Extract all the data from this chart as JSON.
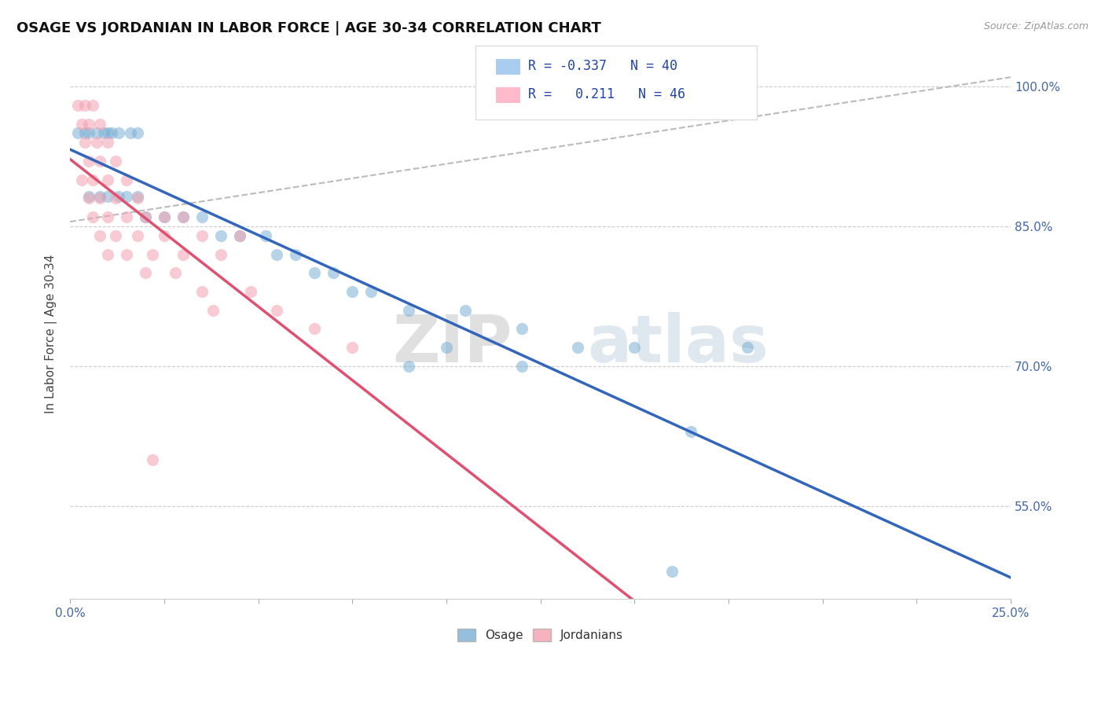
{
  "title": "OSAGE VS JORDANIAN IN LABOR FORCE | AGE 30-34 CORRELATION CHART",
  "source_text": "Source: ZipAtlas.com",
  "ylabel": "In Labor Force | Age 30-34",
  "xlim": [
    0.0,
    0.25
  ],
  "ylim": [
    0.45,
    1.02
  ],
  "xtick_vals": [
    0.0,
    0.025,
    0.05,
    0.075,
    0.1,
    0.125,
    0.15,
    0.175,
    0.2,
    0.225,
    0.25
  ],
  "ytick_vals": [
    0.55,
    0.7,
    0.85,
    1.0
  ],
  "ytick_labels": [
    "55.0%",
    "70.0%",
    "85.0%",
    "100.0%"
  ],
  "blue_r": "-0.337",
  "blue_n": "40",
  "pink_r": "0.211",
  "pink_n": "46",
  "blue_color": "#7BAFD4",
  "pink_color": "#F4A0B0",
  "blue_line_color": "#3366BB",
  "pink_line_color": "#E05070",
  "dash_color": "#BBBBBB",
  "blue_scatter": [
    [
      0.002,
      0.95
    ],
    [
      0.004,
      0.95
    ],
    [
      0.005,
      0.95
    ],
    [
      0.007,
      0.95
    ],
    [
      0.009,
      0.95
    ],
    [
      0.01,
      0.95
    ],
    [
      0.011,
      0.95
    ],
    [
      0.013,
      0.95
    ],
    [
      0.016,
      0.95
    ],
    [
      0.018,
      0.95
    ],
    [
      0.005,
      0.882
    ],
    [
      0.008,
      0.882
    ],
    [
      0.01,
      0.882
    ],
    [
      0.013,
      0.882
    ],
    [
      0.015,
      0.882
    ],
    [
      0.018,
      0.882
    ],
    [
      0.02,
      0.86
    ],
    [
      0.025,
      0.86
    ],
    [
      0.03,
      0.86
    ],
    [
      0.035,
      0.86
    ],
    [
      0.04,
      0.84
    ],
    [
      0.045,
      0.84
    ],
    [
      0.052,
      0.84
    ],
    [
      0.055,
      0.82
    ],
    [
      0.06,
      0.82
    ],
    [
      0.065,
      0.8
    ],
    [
      0.07,
      0.8
    ],
    [
      0.075,
      0.78
    ],
    [
      0.08,
      0.78
    ],
    [
      0.09,
      0.76
    ],
    [
      0.105,
      0.76
    ],
    [
      0.12,
      0.74
    ],
    [
      0.1,
      0.72
    ],
    [
      0.135,
      0.72
    ],
    [
      0.15,
      0.72
    ],
    [
      0.18,
      0.72
    ],
    [
      0.09,
      0.7
    ],
    [
      0.12,
      0.7
    ],
    [
      0.165,
      0.63
    ],
    [
      0.16,
      0.48
    ]
  ],
  "pink_scatter": [
    [
      0.002,
      0.98
    ],
    [
      0.004,
      0.98
    ],
    [
      0.006,
      0.98
    ],
    [
      0.003,
      0.96
    ],
    [
      0.005,
      0.96
    ],
    [
      0.008,
      0.96
    ],
    [
      0.004,
      0.94
    ],
    [
      0.007,
      0.94
    ],
    [
      0.01,
      0.94
    ],
    [
      0.005,
      0.92
    ],
    [
      0.008,
      0.92
    ],
    [
      0.012,
      0.92
    ],
    [
      0.003,
      0.9
    ],
    [
      0.006,
      0.9
    ],
    [
      0.01,
      0.9
    ],
    [
      0.015,
      0.9
    ],
    [
      0.005,
      0.88
    ],
    [
      0.008,
      0.88
    ],
    [
      0.012,
      0.88
    ],
    [
      0.018,
      0.88
    ],
    [
      0.006,
      0.86
    ],
    [
      0.01,
      0.86
    ],
    [
      0.015,
      0.86
    ],
    [
      0.02,
      0.86
    ],
    [
      0.025,
      0.86
    ],
    [
      0.03,
      0.86
    ],
    [
      0.008,
      0.84
    ],
    [
      0.012,
      0.84
    ],
    [
      0.018,
      0.84
    ],
    [
      0.025,
      0.84
    ],
    [
      0.035,
      0.84
    ],
    [
      0.045,
      0.84
    ],
    [
      0.01,
      0.82
    ],
    [
      0.015,
      0.82
    ],
    [
      0.022,
      0.82
    ],
    [
      0.03,
      0.82
    ],
    [
      0.04,
      0.82
    ],
    [
      0.02,
      0.8
    ],
    [
      0.028,
      0.8
    ],
    [
      0.035,
      0.78
    ],
    [
      0.048,
      0.78
    ],
    [
      0.038,
      0.76
    ],
    [
      0.055,
      0.76
    ],
    [
      0.065,
      0.74
    ],
    [
      0.075,
      0.72
    ],
    [
      0.022,
      0.6
    ]
  ],
  "watermark_zip": "ZIP",
  "watermark_atlas": "atlas",
  "legend_blue_label": "Osage",
  "legend_pink_label": "Jordanians"
}
